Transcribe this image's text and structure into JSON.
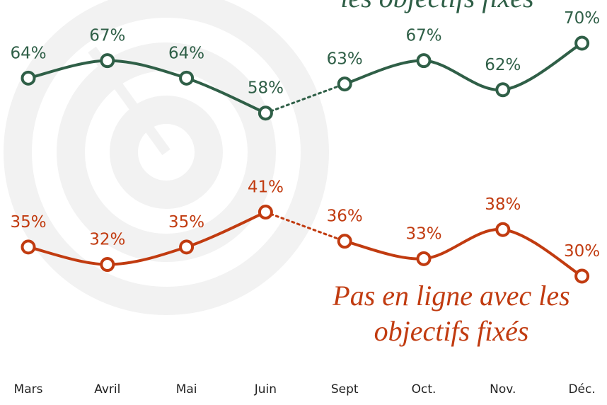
{
  "chart_data": {
    "type": "line",
    "categories": [
      "Mars",
      "Avril",
      "Mai",
      "Juin",
      "Sept",
      "Oct.",
      "Nov.",
      "Déc."
    ],
    "dotted_between": [
      "Juin",
      "Sept"
    ],
    "series": [
      {
        "name": "les objectifs fixés",
        "color": "#2f5f47",
        "values": [
          64,
          67,
          64,
          58,
          63,
          67,
          62,
          70
        ],
        "value_labels": [
          "64%",
          "67%",
          "64%",
          "58%",
          "63%",
          "67%",
          "62%",
          "70%"
        ]
      },
      {
        "name": "Pas en ligne avec les objectifs fixés",
        "color": "#c13b10",
        "values": [
          35,
          32,
          35,
          41,
          36,
          33,
          38,
          30
        ],
        "value_labels": [
          "35%",
          "32%",
          "35%",
          "41%",
          "36%",
          "33%",
          "38%",
          "30%"
        ]
      }
    ]
  }
}
